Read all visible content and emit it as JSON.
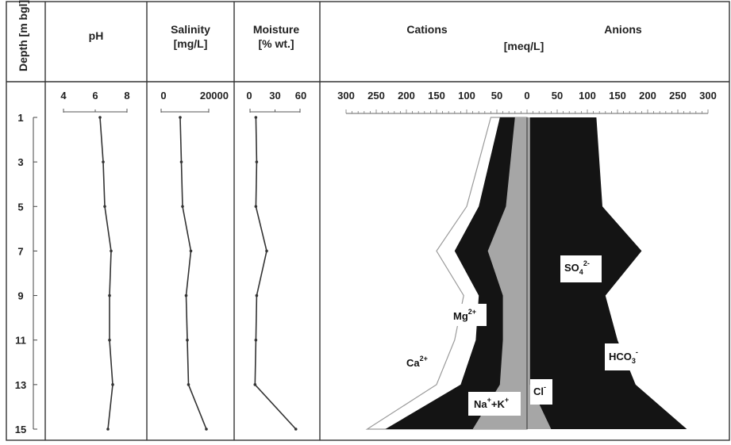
{
  "chart_data": [
    {
      "type": "line",
      "panel": "depth-axis",
      "ylabel": "Depth [m bgl]",
      "y_ticks": [
        1,
        3,
        5,
        7,
        9,
        11,
        13,
        15
      ],
      "ylim": [
        1,
        15
      ],
      "y_inverted": true
    },
    {
      "type": "line",
      "panel": "ph",
      "title": "pH",
      "x_ticks": [
        "4",
        "6",
        "8"
      ],
      "xlim": [
        4,
        8
      ],
      "depth": [
        1,
        3,
        5,
        7,
        9,
        11,
        13,
        15
      ],
      "values": [
        6.3,
        6.5,
        6.6,
        7.0,
        6.9,
        6.9,
        7.1,
        6.8
      ]
    },
    {
      "type": "line",
      "panel": "salinity",
      "title": "Salinity",
      "title_unit": "[mg/L]",
      "x_ticks": [
        "0",
        "20000"
      ],
      "xlim": [
        0,
        20000
      ],
      "depth": [
        1,
        3,
        5,
        7,
        9,
        11,
        13,
        15
      ],
      "values": [
        8000,
        8500,
        9000,
        12500,
        10500,
        11000,
        11500,
        19000
      ]
    },
    {
      "type": "line",
      "panel": "moisture",
      "title": "Moisture",
      "title_unit": "[% wt.]",
      "x_ticks": [
        "0",
        "30",
        "60"
      ],
      "xlim": [
        0,
        60
      ],
      "depth": [
        1,
        3,
        5,
        7,
        9,
        11,
        13,
        15
      ],
      "values": [
        7,
        8,
        7,
        20,
        8,
        7,
        6,
        55
      ]
    },
    {
      "type": "area",
      "panel": "ions",
      "title_left": "Cations",
      "title_right": "Anions",
      "unit": "[meq/L]",
      "x_ticks": [
        "300",
        "250",
        "200",
        "150",
        "100",
        "50",
        "0",
        "50",
        "100",
        "150",
        "200",
        "250",
        "300"
      ],
      "xlim": [
        -300,
        300
      ],
      "depth": [
        1,
        5,
        7,
        9,
        11,
        13,
        15
      ],
      "cations_cumulative": [
        {
          "name": "Na++K+",
          "values": [
            20,
            35,
            65,
            40,
            40,
            45,
            90
          ]
        },
        {
          "name": "Mg2+",
          "values": [
            45,
            80,
            120,
            80,
            85,
            110,
            235
          ]
        },
        {
          "name": "Ca2+",
          "values": [
            60,
            100,
            150,
            105,
            120,
            150,
            265
          ]
        }
      ],
      "anions_cumulative": [
        {
          "name": "Cl-",
          "values": [
            5,
            5,
            5,
            5,
            5,
            5,
            40
          ]
        },
        {
          "name": "SO42- + HCO3-",
          "values": [
            115,
            125,
            190,
            130,
            150,
            180,
            265
          ]
        }
      ],
      "labels": {
        "ca": "Ca",
        "ca_sup": "2+",
        "mg": "Mg",
        "mg_sup": "2+",
        "na": "Na",
        "na_sup": "+",
        "na_mid": "+K",
        "k_sup": "+",
        "cl": "Cl",
        "cl_sup": "-",
        "so4": "SO",
        "so4_sub": "4",
        "so4_sup": "2-",
        "hco3": "HCO",
        "hco3_sub": "3",
        "hco3_sup": "-"
      }
    }
  ],
  "colors": {
    "dark": "#141414",
    "grey": "#a6a6a6",
    "line": "#333333"
  }
}
